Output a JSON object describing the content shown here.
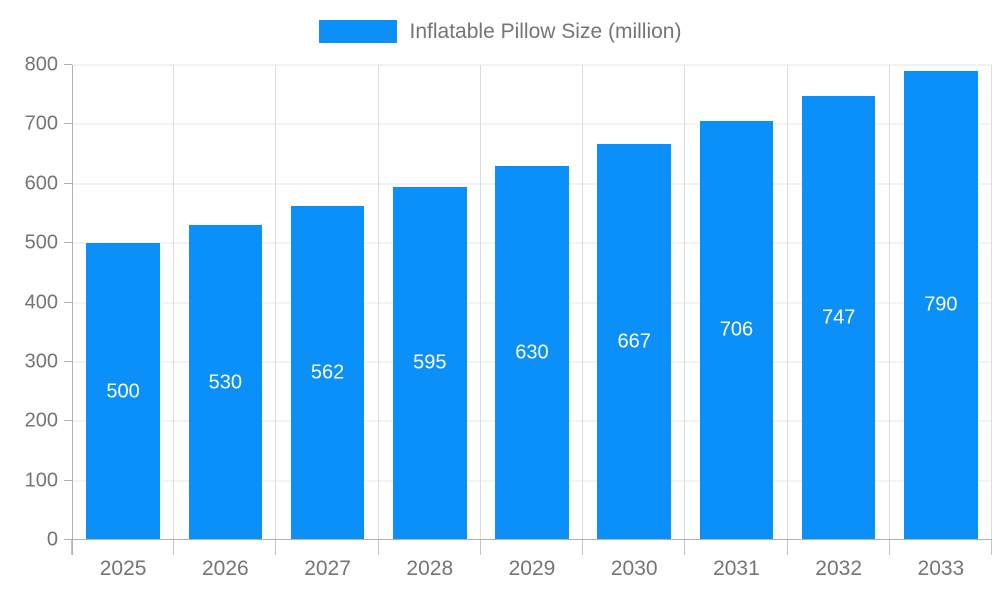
{
  "legend": {
    "label": "Inflatable Pillow Size (million)"
  },
  "chart_data": {
    "type": "bar",
    "title": "",
    "xlabel": "",
    "ylabel": "",
    "categories": [
      "2025",
      "2026",
      "2027",
      "2028",
      "2029",
      "2030",
      "2031",
      "2032",
      "2033"
    ],
    "values": [
      500,
      530,
      562,
      595,
      630,
      667,
      706,
      747,
      790
    ],
    "series_name": "Inflatable Pillow Size (million)",
    "ylim": [
      0,
      800
    ],
    "ytick_interval": 100,
    "ytick_labels": [
      "0",
      "100",
      "200",
      "300",
      "400",
      "500",
      "600",
      "700",
      "800"
    ],
    "value_labels_shown": true,
    "grid": true,
    "legend_position": "top-center"
  },
  "colors": {
    "bar": "#0a90f8",
    "axis_text": "#757575",
    "value_label_text": "#ffffff",
    "hgridline": "#e7e7e7",
    "vgridline": "#dcdcdc",
    "axis_line": "#b0b0b0"
  }
}
